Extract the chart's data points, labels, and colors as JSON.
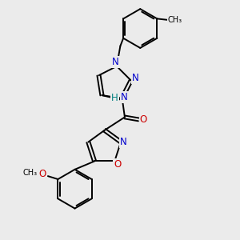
{
  "background_color": "#ebebeb",
  "line_color": "#000000",
  "bond_width": 1.4,
  "atom_colors": {
    "N": "#0000cc",
    "O": "#cc0000",
    "H": "#008080",
    "C": "#000000"
  },
  "font_size_atom": 8.5,
  "font_size_small": 7.0
}
